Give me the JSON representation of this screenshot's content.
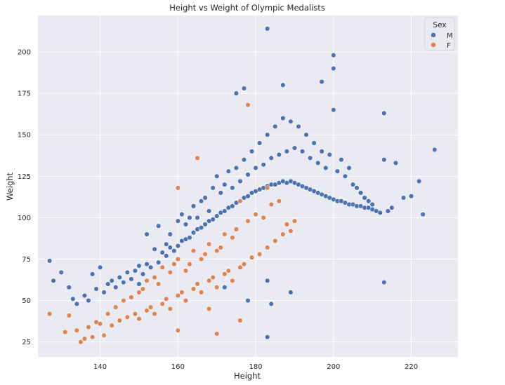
{
  "chart_data": {
    "type": "scatter",
    "title": "Height vs Weight of Olympic Medalists",
    "xlabel": "Height",
    "ylabel": "Weight",
    "xlim": [
      124,
      232
    ],
    "ylim": [
      16,
      222
    ],
    "xticks": [
      140,
      160,
      180,
      200,
      220
    ],
    "yticks": [
      25,
      50,
      75,
      100,
      125,
      150,
      175,
      200
    ],
    "grid": true,
    "legend": {
      "title": "Sex",
      "position": "top-right"
    },
    "series": [
      {
        "name": "M",
        "color": "#4c72b0",
        "x": [
          127,
          128,
          130,
          132,
          133,
          134,
          136,
          137,
          138,
          139,
          140,
          141,
          142,
          143,
          144,
          145,
          146,
          147,
          148,
          149,
          150,
          150,
          151,
          152,
          152,
          153,
          154,
          155,
          155,
          156,
          157,
          157,
          158,
          158,
          159,
          160,
          160,
          161,
          161,
          162,
          162,
          163,
          163,
          164,
          164,
          165,
          165,
          166,
          166,
          167,
          167,
          168,
          168,
          169,
          169,
          170,
          170,
          171,
          171,
          172,
          172,
          173,
          173,
          174,
          174,
          175,
          175,
          176,
          176,
          177,
          177,
          178,
          178,
          179,
          179,
          180,
          180,
          181,
          181,
          182,
          182,
          183,
          183,
          184,
          184,
          185,
          185,
          186,
          186,
          187,
          187,
          188,
          188,
          189,
          189,
          190,
          190,
          191,
          191,
          192,
          192,
          193,
          193,
          194,
          194,
          195,
          195,
          196,
          196,
          197,
          197,
          198,
          198,
          199,
          199,
          200,
          200,
          201,
          201,
          202,
          202,
          203,
          203,
          204,
          204,
          205,
          205,
          206,
          206,
          207,
          207,
          208,
          208,
          209,
          209,
          210,
          210,
          211,
          212,
          213,
          214,
          215,
          216,
          218,
          220,
          222,
          223,
          226,
          183,
          200,
          200,
          197,
          187,
          177,
          175,
          183,
          213,
          213,
          183,
          189,
          184,
          178,
          172
        ],
        "y": [
          74,
          62,
          67,
          58,
          51,
          48,
          53,
          50,
          66,
          57,
          70,
          55,
          60,
          62,
          58,
          64,
          61,
          67,
          63,
          68,
          71,
          60,
          66,
          90,
          72,
          70,
          81,
          95,
          73,
          79,
          77,
          84,
          82,
          90,
          80,
          83,
          98,
          86,
          102,
          87,
          96,
          88,
          100,
          91,
          107,
          93,
          100,
          94,
          110,
          96,
          112,
          98,
          104,
          99,
          118,
          101,
          125,
          103,
          115,
          104,
          120,
          106,
          128,
          107,
          118,
          109,
          130,
          110,
          122,
          112,
          135,
          113,
          126,
          115,
          140,
          116,
          130,
          117,
          145,
          118,
          132,
          119,
          150,
          120,
          136,
          120,
          155,
          121,
          138,
          122,
          160,
          121,
          140,
          122,
          158,
          121,
          142,
          120,
          155,
          119,
          140,
          118,
          150,
          117,
          136,
          116,
          145,
          115,
          133,
          114,
          140,
          113,
          130,
          112,
          138,
          111,
          165,
          110,
          128,
          110,
          135,
          109,
          125,
          108,
          130,
          108,
          120,
          107,
          118,
          107,
          115,
          106,
          112,
          106,
          110,
          105,
          108,
          104,
          103,
          135,
          104,
          106,
          133,
          112,
          113,
          122,
          102,
          141,
          214,
          198,
          190,
          182,
          180,
          178,
          175,
          28,
          163,
          61,
          62,
          55,
          48,
          50,
          58
        ]
      },
      {
        "name": "F",
        "color": "#dd8452",
        "x": [
          127,
          131,
          132,
          134,
          135,
          136,
          137,
          138,
          139,
          140,
          141,
          142,
          143,
          144,
          145,
          146,
          147,
          148,
          149,
          150,
          150,
          151,
          152,
          152,
          153,
          154,
          154,
          155,
          156,
          156,
          157,
          158,
          158,
          159,
          160,
          160,
          161,
          162,
          162,
          163,
          164,
          164,
          165,
          166,
          166,
          167,
          168,
          168,
          169,
          170,
          170,
          171,
          172,
          172,
          173,
          174,
          174,
          175,
          176,
          176,
          177,
          178,
          179,
          180,
          181,
          182,
          183,
          184,
          185,
          186,
          187,
          188,
          189,
          190,
          165,
          160,
          170,
          176,
          178,
          183,
          160,
          168
        ],
        "y": [
          42,
          31,
          41,
          32,
          25,
          27,
          34,
          28,
          37,
          36,
          29,
          42,
          35,
          46,
          38,
          50,
          40,
          52,
          42,
          55,
          39,
          57,
          44,
          62,
          46,
          64,
          42,
          60,
          48,
          70,
          51,
          67,
          45,
          72,
          53,
          75,
          55,
          68,
          50,
          72,
          57,
          80,
          60,
          75,
          55,
          78,
          62,
          84,
          64,
          80,
          58,
          82,
          66,
          90,
          68,
          88,
          62,
          93,
          70,
          110,
          72,
          98,
          76,
          102,
          78,
          100,
          82,
          108,
          86,
          110,
          90,
          96,
          92,
          98,
          136,
          118,
          30,
          38,
          168,
          118,
          32,
          45
        ]
      }
    ]
  }
}
